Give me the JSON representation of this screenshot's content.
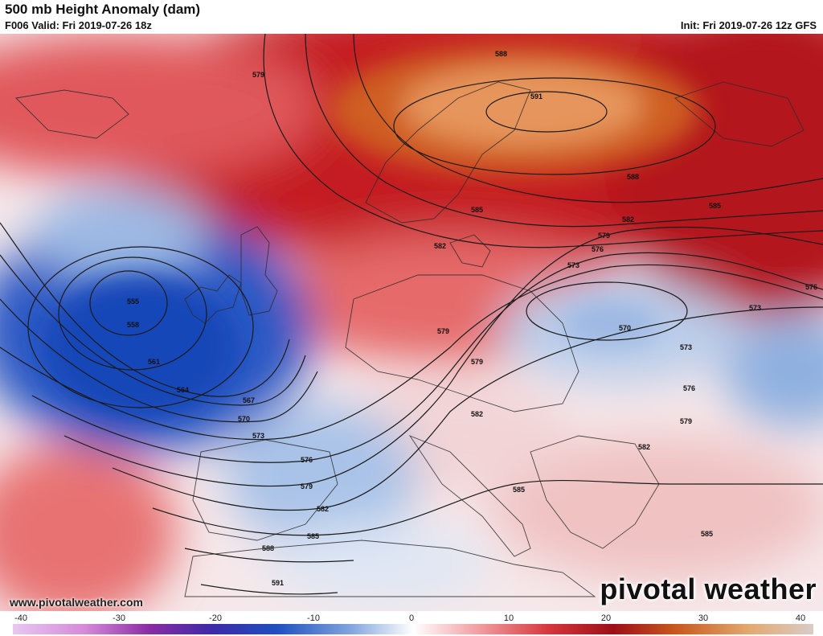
{
  "header": {
    "title": "500 mb Height Anomaly (dam)",
    "valid": "F006 Valid: Fri 2019-07-26 18z",
    "init": "Init: Fri 2019-07-26 12z GFS"
  },
  "footer": {
    "url": "www.pivotalweather.com",
    "brand": "pivotal weather"
  },
  "colorbar": {
    "ticks": [
      "-40",
      "-30",
      "-20",
      "-10",
      "0",
      "10",
      "20",
      "30",
      "40"
    ]
  },
  "contour_labels": {
    "c555": "555",
    "c558": "558",
    "c561": "561",
    "c564": "564",
    "c567": "567",
    "c570": "570",
    "c573": "573",
    "c576": "576",
    "c579": "579",
    "c582": "582",
    "c585": "585",
    "c588": "588",
    "c591": "591",
    "c579b": "579",
    "c579c": "579",
    "c579d": "579",
    "c579e": "579",
    "c579f": "579",
    "c582b": "582",
    "c582c": "582",
    "c582d": "582",
    "c582e": "582",
    "c585b": "585",
    "c585c": "585",
    "c585d": "585",
    "c585e": "585",
    "c588b": "588",
    "c588c": "588",
    "c591b": "591",
    "c573b": "573",
    "c573c": "573",
    "c573d": "573",
    "c576b": "576",
    "c576c": "576",
    "c576d": "576",
    "c570b": "570",
    "c570c": "570"
  },
  "colors": {
    "strong_positive": "#b8141a",
    "positive_peak": "#e2904f",
    "strong_negative": "#1f4fc0",
    "neutral": "#ffffff"
  }
}
